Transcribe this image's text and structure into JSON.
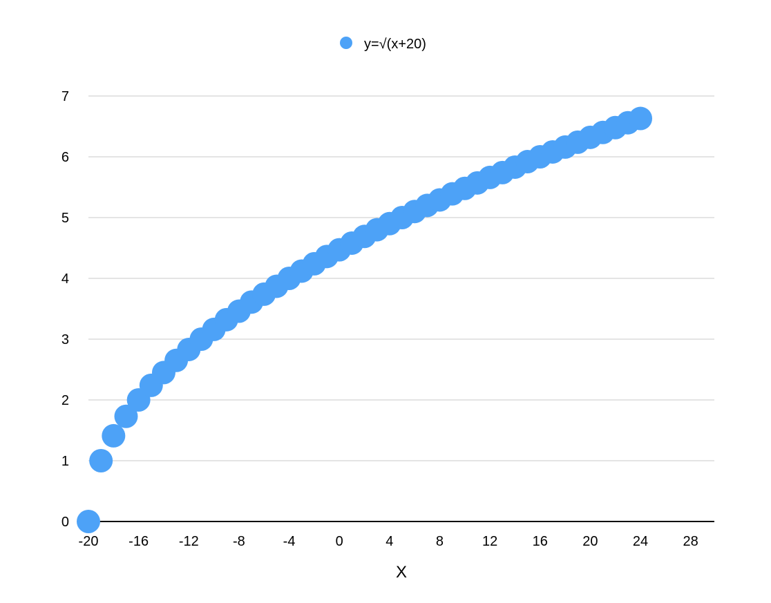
{
  "chart_data": {
    "type": "scatter",
    "title": "",
    "xlabel": "X",
    "ylabel": "",
    "xlim": [
      -20,
      31
    ],
    "ylim": [
      0,
      7
    ],
    "x_ticks": [
      -20,
      -16,
      -12,
      -8,
      -4,
      0,
      4,
      8,
      12,
      16,
      20,
      24,
      28
    ],
    "x_tick_labels": [
      "-20",
      "-16",
      "-12",
      "-8",
      "-4",
      "0",
      "4",
      "8",
      "12",
      "16",
      "20",
      "24",
      "28"
    ],
    "y_ticks": [
      0,
      1,
      2,
      3,
      4,
      5,
      6,
      7
    ],
    "y_tick_labels": [
      "0",
      "1",
      "2",
      "3",
      "4",
      "5",
      "6",
      "7"
    ],
    "grid": "horizontal",
    "legend_position": "top-center",
    "series": [
      {
        "name": "y=√(x+20)",
        "color": "#4da2f7",
        "x": [
          -20,
          -19,
          -18,
          -17,
          -16,
          -15,
          -14,
          -13,
          -12,
          -11,
          -10,
          -9,
          -8,
          -7,
          -6,
          -5,
          -4,
          -3,
          -2,
          -1,
          0,
          1,
          2,
          3,
          4,
          5,
          6,
          7,
          8,
          9,
          10,
          11,
          12,
          13,
          14,
          15,
          16,
          17,
          18,
          19,
          20,
          21,
          22,
          23,
          24
        ],
        "y": [
          0,
          1,
          1.41,
          1.73,
          2,
          2.24,
          2.45,
          2.65,
          2.83,
          3,
          3.16,
          3.32,
          3.46,
          3.61,
          3.74,
          3.87,
          4,
          4.12,
          4.24,
          4.36,
          4.47,
          4.58,
          4.69,
          4.8,
          4.9,
          5,
          5.1,
          5.2,
          5.29,
          5.39,
          5.48,
          5.57,
          5.66,
          5.74,
          5.83,
          5.92,
          6,
          6.08,
          6.16,
          6.24,
          6.32,
          6.4,
          6.48,
          6.56,
          6.63
        ]
      }
    ]
  }
}
